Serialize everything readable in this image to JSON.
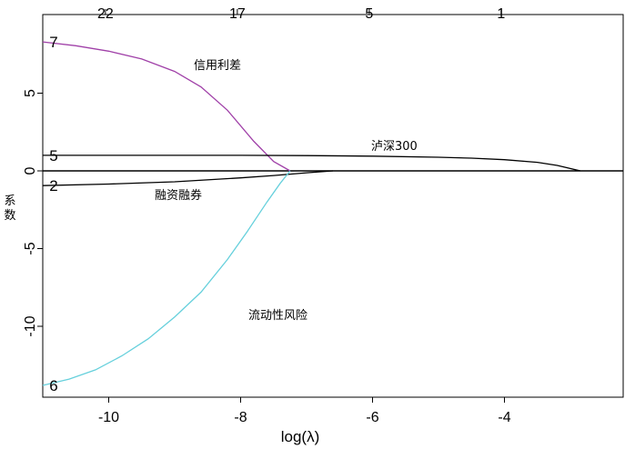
{
  "chart_data": {
    "type": "line",
    "xlabel": "log(λ)",
    "ylabel": "系数",
    "xlim": [
      -11.2,
      -2.6
    ],
    "ylim": [
      -14.8,
      8.5
    ],
    "x_ticks": [
      -10,
      -8,
      -6,
      -4
    ],
    "x_tick_labels": [
      "-10",
      "-8",
      "-6",
      "-4"
    ],
    "y_ticks": [
      -10,
      -5,
      0,
      5
    ],
    "y_tick_labels": [
      "-10",
      "-5",
      "0",
      "5"
    ],
    "top_axis_ticks": [
      -10.05,
      -8.05,
      -6.05,
      -4.05
    ],
    "top_axis_labels": [
      "22",
      "17",
      "5",
      "1"
    ],
    "zero_line": true,
    "grid": false,
    "series": [
      {
        "name": "信用利差",
        "color": "#a040a8",
        "end_label": "7",
        "x": [
          -11.0,
          -10.5,
          -10.0,
          -9.5,
          -9.0,
          -8.6,
          -8.2,
          -7.8,
          -7.5,
          -7.25
        ],
        "y": [
          8.3,
          8.05,
          7.7,
          7.2,
          6.4,
          5.4,
          3.9,
          1.9,
          0.6,
          0.0
        ]
      },
      {
        "name": "泸深300",
        "color": "#000000",
        "end_label": "5",
        "x": [
          -11.0,
          -10.0,
          -8.0,
          -7.0,
          -6.0,
          -5.0,
          -4.5,
          -4.0,
          -3.5,
          -3.2,
          -2.85
        ],
        "y": [
          1.0,
          1.0,
          1.0,
          0.98,
          0.95,
          0.88,
          0.82,
          0.72,
          0.55,
          0.35,
          0.0
        ]
      },
      {
        "name": "融资融券",
        "color": "#000000",
        "end_label": "2",
        "x": [
          -11.0,
          -10.0,
          -9.0,
          -8.0,
          -7.5,
          -7.0,
          -6.6
        ],
        "y": [
          -0.95,
          -0.85,
          -0.7,
          -0.45,
          -0.3,
          -0.12,
          0.0
        ]
      },
      {
        "name": "流动性风险",
        "color": "#66d0dc",
        "end_label": "6",
        "x": [
          -11.0,
          -10.6,
          -10.2,
          -9.8,
          -9.4,
          -9.0,
          -8.6,
          -8.2,
          -7.9,
          -7.6,
          -7.4,
          -7.25
        ],
        "y": [
          -13.8,
          -13.4,
          -12.8,
          -11.9,
          -10.8,
          -9.4,
          -7.8,
          -5.7,
          -3.9,
          -2.0,
          -0.8,
          0.0
        ]
      }
    ]
  }
}
